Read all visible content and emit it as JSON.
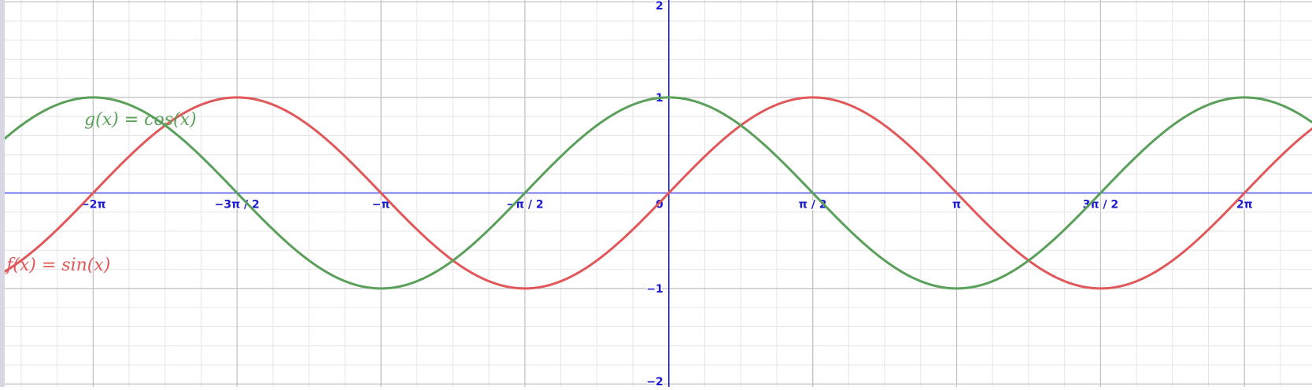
{
  "colors": {
    "background": "#ffffff",
    "minor_grid": "#e6e6e6",
    "major_grid": "#c0c0c0",
    "x_axis": "#5a5af0",
    "y_axis": "#2020e0",
    "tick_label": "#1a1ad0",
    "sin_color": "#e0585a",
    "cos_color": "#5aa05a",
    "left_bar": "#d9d6e3"
  },
  "chart_data": {
    "type": "line",
    "title": "",
    "xlabel": "",
    "ylabel": "",
    "xlim": [
      -7.3,
      7.02
    ],
    "ylim": [
      -2.03,
      2.02
    ],
    "grid": true,
    "x_major_ticks": [
      -6.2832,
      -4.7124,
      -3.1416,
      -1.5708,
      0,
      1.5708,
      3.1416,
      4.7124,
      6.2832
    ],
    "x_tick_labels": [
      "−2π",
      "−3π / 2",
      "−π",
      "−π / 2",
      "0",
      "π / 2",
      "π",
      "3π / 2",
      "2π"
    ],
    "y_major_ticks": [
      -2,
      -1,
      1,
      2
    ],
    "y_tick_labels": [
      "−2",
      "−1",
      "1",
      "2"
    ],
    "series": [
      {
        "name": "f(x) = sin(x)",
        "function": "sin",
        "color": "#e0585a",
        "x": [
          -7.3,
          -6.2832,
          -5.4978,
          -4.7124,
          -3.927,
          -3.1416,
          -2.3562,
          -1.5708,
          -0.7854,
          0,
          0.7854,
          1.5708,
          2.3562,
          3.1416,
          3.927,
          4.7124,
          5.4978,
          6.2832,
          7.02
        ],
        "values": [
          -0.85,
          0,
          0.71,
          1,
          0.71,
          0,
          -0.71,
          -1,
          -0.71,
          0,
          0.71,
          1,
          0.71,
          0,
          -0.71,
          -1,
          -0.71,
          0,
          0.66
        ]
      },
      {
        "name": "g(x) = cos(x)",
        "function": "cos",
        "color": "#5aa05a",
        "x": [
          -7.3,
          -6.2832,
          -5.4978,
          -4.7124,
          -3.927,
          -3.1416,
          -2.3562,
          -1.5708,
          -0.7854,
          0,
          0.7854,
          1.5708,
          2.3562,
          3.1416,
          3.927,
          4.7124,
          5.4978,
          6.2832,
          7.02
        ],
        "values": [
          0.53,
          1,
          0.71,
          0,
          -0.71,
          -1,
          -0.71,
          0,
          0.71,
          1,
          0.71,
          0,
          -0.71,
          -1,
          -0.71,
          0,
          0.71,
          1,
          0.75
        ]
      }
    ],
    "annotations": [
      {
        "text": "g(x)  =  cos(x)",
        "series": "cos",
        "x": -6.38,
        "y": 0.71
      },
      {
        "text": "f(x)  =  sin(x)",
        "series": "sin",
        "x": -7.23,
        "y": -0.81
      }
    ]
  }
}
